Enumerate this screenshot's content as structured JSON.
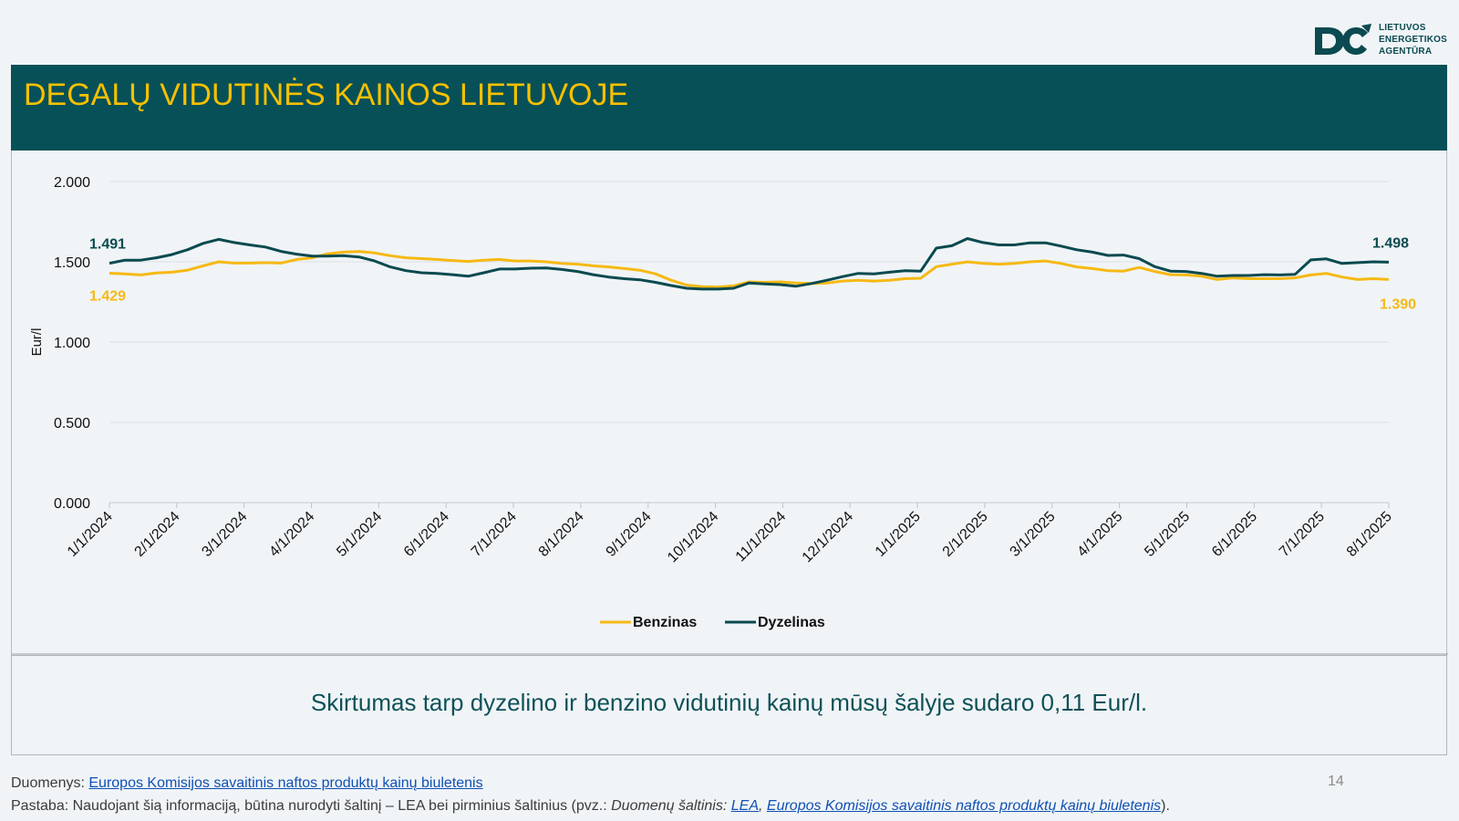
{
  "logo": {
    "icon": "lea-logo-icon",
    "lines": [
      "LIETUVOS",
      "ENERGETIKOS",
      "AGENTŪRA"
    ],
    "color": "#0a4a50"
  },
  "title": "DEGALŲ VIDUTINĖS KAINOS LIETUVOJE",
  "chart_data": {
    "type": "line",
    "title": "",
    "xlabel": "",
    "ylabel": "Eur/l",
    "ylim": [
      0,
      2
    ],
    "yticks": [
      "0.000",
      "0.500",
      "1.000",
      "1.500",
      "2.000"
    ],
    "ytick_values": [
      0,
      0.5,
      1,
      1.5,
      2
    ],
    "xticks": [
      "1/1/2024",
      "2/1/2024",
      "3/1/2024",
      "4/1/2024",
      "5/1/2024",
      "6/1/2024",
      "7/1/2024",
      "8/1/2024",
      "9/1/2024",
      "10/1/2024",
      "11/1/2024",
      "12/1/2024",
      "1/1/2025",
      "2/1/2025",
      "3/1/2025",
      "4/1/2025",
      "5/1/2025",
      "6/1/2025",
      "7/1/2025",
      "8/1/2025"
    ],
    "grid": true,
    "legend": "bottom-center",
    "series": [
      {
        "name": "Benzinas",
        "color": "#f6b914",
        "start_label": "1.429",
        "end_label": "1.390",
        "values": [
          1.429,
          1.425,
          1.418,
          1.43,
          1.435,
          1.448,
          1.475,
          1.5,
          1.492,
          1.492,
          1.495,
          1.492,
          1.515,
          1.525,
          1.55,
          1.56,
          1.565,
          1.555,
          1.538,
          1.525,
          1.52,
          1.515,
          1.508,
          1.502,
          1.51,
          1.515,
          1.505,
          1.505,
          1.5,
          1.49,
          1.485,
          1.475,
          1.468,
          1.458,
          1.448,
          1.425,
          1.385,
          1.355,
          1.345,
          1.342,
          1.35,
          1.375,
          1.372,
          1.375,
          1.368,
          1.365,
          1.368,
          1.38,
          1.385,
          1.38,
          1.385,
          1.395,
          1.398,
          1.47,
          1.485,
          1.5,
          1.49,
          1.485,
          1.49,
          1.5,
          1.505,
          1.49,
          1.468,
          1.458,
          1.445,
          1.442,
          1.465,
          1.44,
          1.42,
          1.418,
          1.41,
          1.39,
          1.4,
          1.395,
          1.395,
          1.395,
          1.4,
          1.418,
          1.428,
          1.405,
          1.39,
          1.395,
          1.39
        ]
      },
      {
        "name": "Dyzelinas",
        "color": "#0a4a4f",
        "start_label": "1.491",
        "end_label": "1.498",
        "values": [
          1.491,
          1.51,
          1.51,
          1.525,
          1.545,
          1.575,
          1.615,
          1.64,
          1.62,
          1.605,
          1.592,
          1.565,
          1.548,
          1.535,
          1.535,
          1.538,
          1.53,
          1.505,
          1.468,
          1.445,
          1.432,
          1.428,
          1.42,
          1.41,
          1.432,
          1.455,
          1.455,
          1.46,
          1.462,
          1.452,
          1.44,
          1.42,
          1.405,
          1.395,
          1.388,
          1.372,
          1.352,
          1.335,
          1.33,
          1.33,
          1.335,
          1.368,
          1.362,
          1.358,
          1.348,
          1.365,
          1.385,
          1.408,
          1.428,
          1.425,
          1.435,
          1.445,
          1.442,
          1.585,
          1.6,
          1.645,
          1.62,
          1.605,
          1.605,
          1.618,
          1.618,
          1.598,
          1.575,
          1.56,
          1.54,
          1.542,
          1.52,
          1.47,
          1.442,
          1.44,
          1.428,
          1.41,
          1.415,
          1.415,
          1.42,
          1.418,
          1.422,
          1.512,
          1.518,
          1.49,
          1.495,
          1.5,
          1.498
        ]
      }
    ]
  },
  "summary": "Skirtumas tarp dyzelino ir benzino vidutinių kainų mūsų šalyje sudaro 0,11 Eur/l.",
  "footer": {
    "data_prefix": "Duomenys: ",
    "data_link": "Europos Komisijos savaitinis naftos produktų kainų biuletenis",
    "note_prefix": "Pastaba: Naudojant šią informaciją, būtina nurodyti šaltinį – LEA bei pirminius šaltinius (pvz.: ",
    "note_italic": "Duomenų šaltinis: ",
    "note_link1": "LEA",
    "note_sep": ", ",
    "note_link2": "Europos Komisijos savaitinis naftos produktų kainų biuletenis",
    "note_suffix": ")."
  },
  "page_number": "14",
  "colors": {
    "title_bar": "#075057",
    "title_text": "#f6c000",
    "summary_text": "#0e5158",
    "link": "#1050b4"
  }
}
